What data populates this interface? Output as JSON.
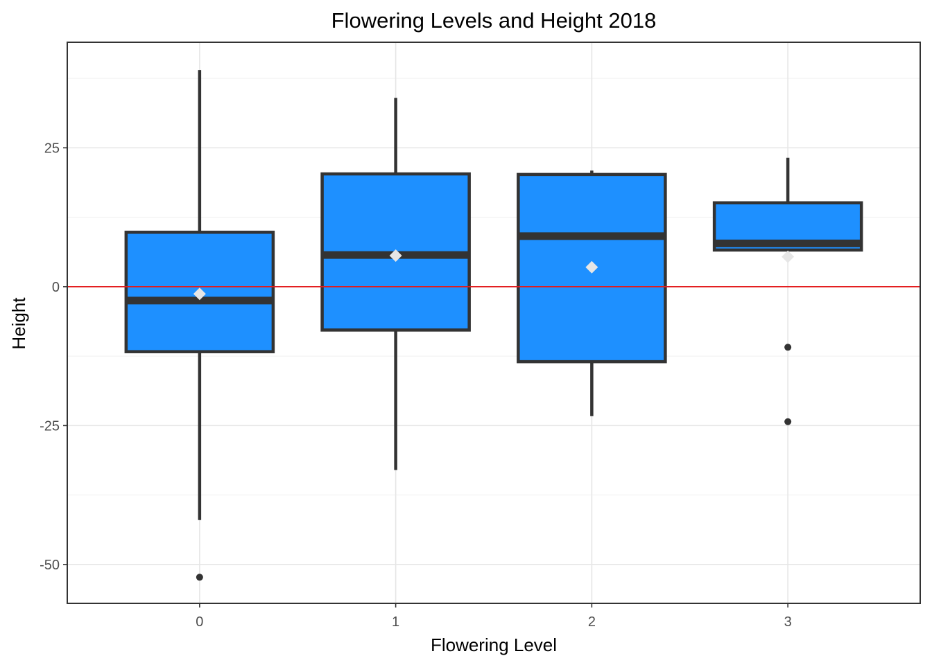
{
  "chart_data": {
    "type": "box",
    "title": "Flowering Levels and Height 2018",
    "xlabel": "Flowering Level",
    "ylabel": "Height",
    "categories": [
      "0",
      "1",
      "2",
      "3"
    ],
    "ylim": [
      -57,
      44
    ],
    "yticks": [
      -50,
      -25,
      0,
      25
    ],
    "ytick_labels": [
      "-50",
      "-25",
      "0",
      "25"
    ],
    "reference_line": {
      "y": 0,
      "color": "#e41a1c"
    },
    "grid": true,
    "legend": "none",
    "box_fill": "#1e90ff",
    "box_stroke": "#333333",
    "mean_marker_color": "#e6e6e6",
    "boxes": [
      {
        "category": "0",
        "whisker_low": -42,
        "q1": -11.7,
        "median": -2.5,
        "q3": 9.8,
        "whisker_high": 39,
        "mean": -1.3,
        "outliers": [
          -52.3
        ]
      },
      {
        "category": "1",
        "whisker_low": -33,
        "q1": -7.8,
        "median": 5.7,
        "q3": 20.3,
        "whisker_high": 34,
        "mean": 5.6,
        "outliers": []
      },
      {
        "category": "2",
        "whisker_low": -23.3,
        "q1": -13.5,
        "median": 9.1,
        "q3": 20.2,
        "whisker_high": 20.9,
        "mean": 3.5,
        "outliers": []
      },
      {
        "category": "3",
        "whisker_low": 6.6,
        "q1": 6.6,
        "median": 7.8,
        "q3": 15.1,
        "whisker_high": 23.2,
        "mean": 5.4,
        "outliers": [
          -10.9,
          -24.3
        ]
      }
    ]
  }
}
